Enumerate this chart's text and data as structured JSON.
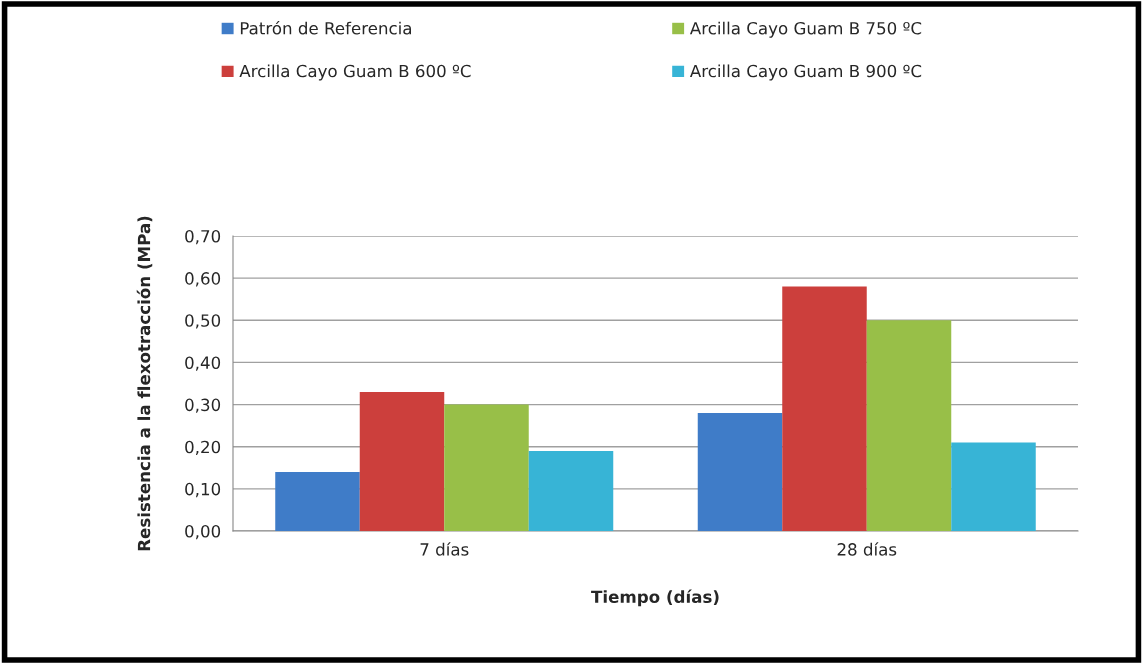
{
  "chart_data": {
    "type": "bar",
    "xlabel": "Tiempo (días)",
    "ylabel": "Resistencia a la flexotracción (MPa)",
    "categories": [
      "7 días",
      "28 días"
    ],
    "series": [
      {
        "name": "Patrón de Referencia",
        "color": "#3f7cc8",
        "values": [
          0.14,
          0.28
        ]
      },
      {
        "name": "Arcilla Cayo Guam B 600 ºC",
        "color": "#cc3f3c",
        "values": [
          0.33,
          0.58
        ]
      },
      {
        "name": "Arcilla Cayo Guam B 750 ºC",
        "color": "#98bf48",
        "values": [
          0.3,
          0.5
        ]
      },
      {
        "name": "Arcilla Cayo Guam B 900 ºC",
        "color": "#37b4d6",
        "values": [
          0.19,
          0.21
        ]
      }
    ],
    "ylim": [
      0,
      0.7
    ],
    "yticks": [
      {
        "value": 0,
        "label": "0,00"
      },
      {
        "value": 0.1,
        "label": "0,10"
      },
      {
        "value": 0.2,
        "label": "0,20"
      },
      {
        "value": 0.3,
        "label": "0,30"
      },
      {
        "value": 0.4,
        "label": "0,40"
      },
      {
        "value": 0.5,
        "label": "0,50"
      },
      {
        "value": 0.6,
        "label": "0,60"
      },
      {
        "value": 0.7,
        "label": "0,70"
      }
    ],
    "grid": "y",
    "legend": "top"
  }
}
